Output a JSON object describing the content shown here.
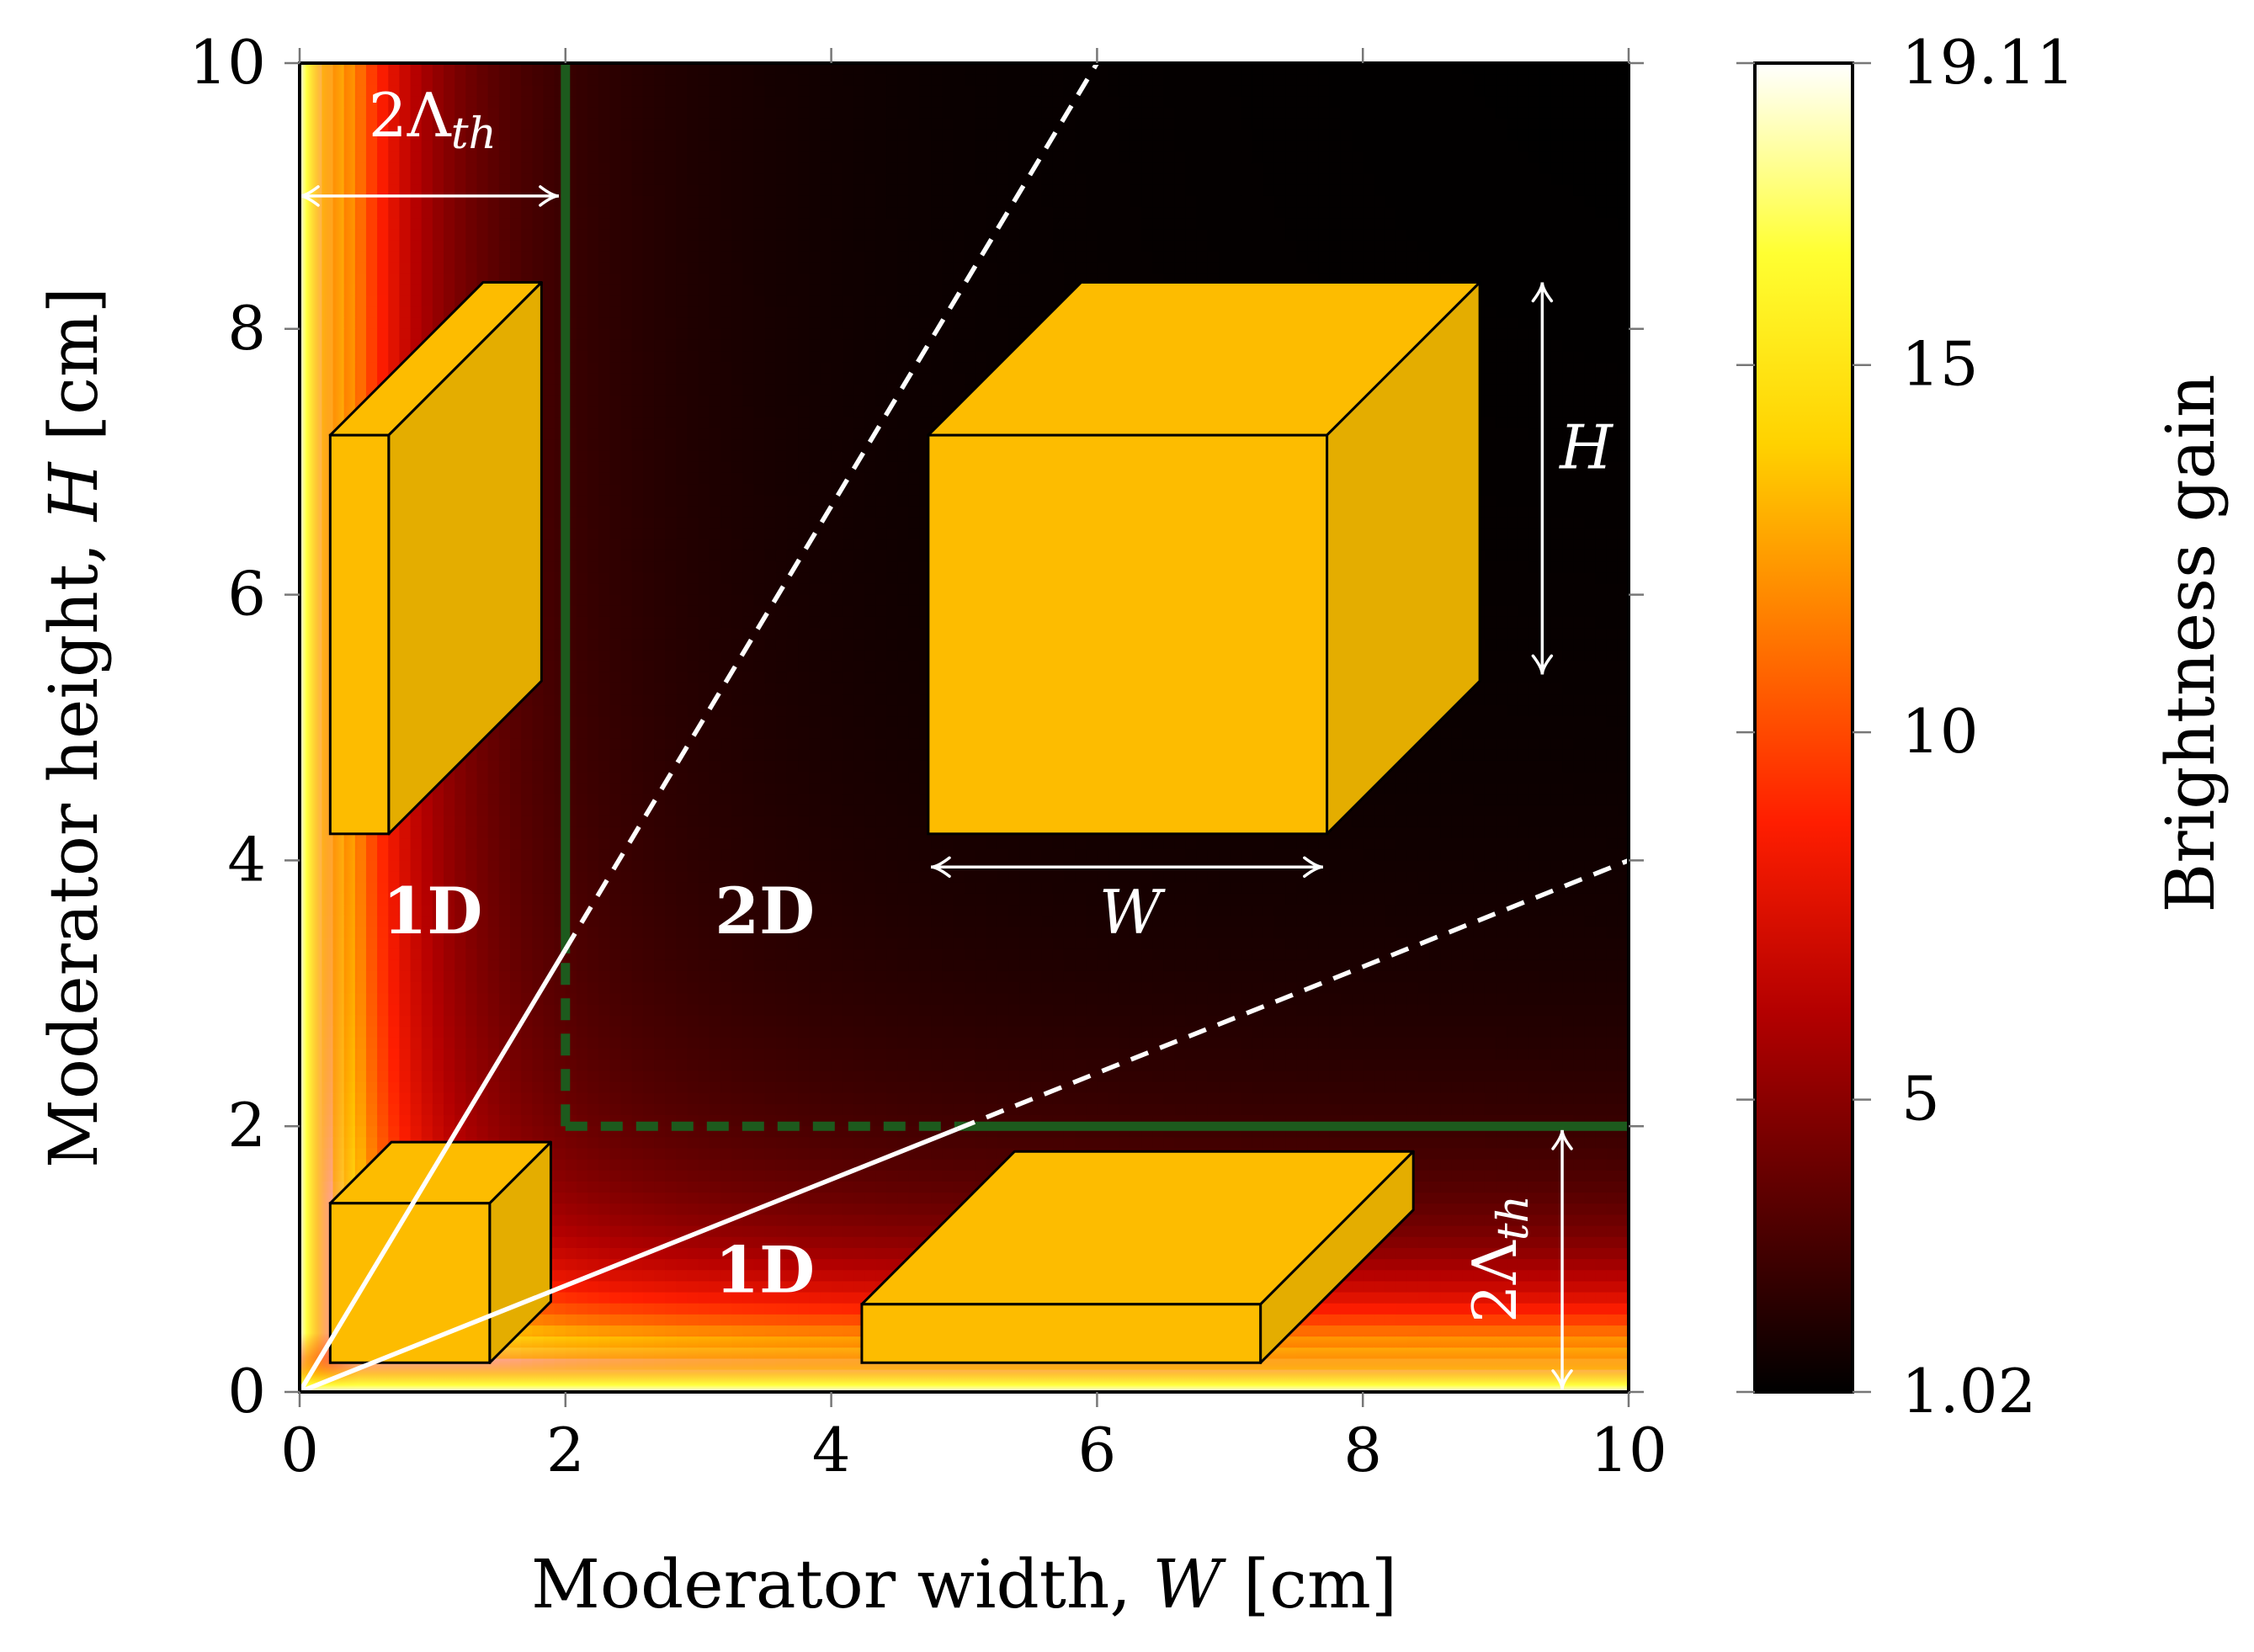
{
  "chart_data": {
    "type": "heatmap",
    "xlabel": "Moderator width, W [cm]",
    "xlabel_parts": {
      "prefix": "Moderator width, ",
      "symbol": "W",
      "suffix": " [cm]"
    },
    "ylabel": "Moderator height, H [cm]",
    "ylabel_parts": {
      "prefix": "Moderator height, ",
      "symbol": "H",
      "suffix": " [cm]"
    },
    "xlim": [
      0,
      10
    ],
    "ylim": [
      0,
      10
    ],
    "xticks": [
      0,
      2,
      4,
      6,
      8,
      10
    ],
    "yticks": [
      0,
      2,
      4,
      6,
      8,
      10
    ],
    "xtick_labels": [
      "0",
      "2",
      "4",
      "6",
      "8",
      "10"
    ],
    "ytick_labels": [
      "0",
      "2",
      "4",
      "6",
      "8",
      "10"
    ],
    "colorbar": {
      "label": "Brightness gain",
      "min": 1.02,
      "max": 19.11,
      "ticks": [
        1.02,
        5,
        10,
        15,
        19.11
      ],
      "tick_labels": [
        "1.02",
        "5",
        "10",
        "15",
        "19.11"
      ],
      "colormap": [
        "#000000",
        "#5a0000",
        "#b40000",
        "#ff1e00",
        "#ff7800",
        "#ffd200",
        "#ffff32",
        "#ffffff"
      ]
    },
    "lines": [
      {
        "name": "lambda-boundary-vertical-solid",
        "color": "#1d5a1d",
        "style": "solid",
        "points": [
          [
            2,
            3.3
          ],
          [
            2,
            10
          ]
        ]
      },
      {
        "name": "lambda-boundary-vertical-dashed",
        "color": "#1d5a1d",
        "style": "dashed",
        "points": [
          [
            2,
            2
          ],
          [
            2,
            3.3
          ]
        ]
      },
      {
        "name": "lambda-boundary-horizontal-dashed",
        "color": "#1d5a1d",
        "style": "dashed",
        "points": [
          [
            2,
            2
          ],
          [
            4.95,
            2
          ]
        ]
      },
      {
        "name": "lambda-boundary-horizontal-solid",
        "color": "#1d5a1d",
        "style": "solid",
        "points": [
          [
            4.95,
            2
          ],
          [
            10,
            2
          ]
        ]
      },
      {
        "name": "regime-boundary-upper-solid",
        "color": "#ffffff",
        "style": "solid",
        "points": [
          [
            0,
            0
          ],
          [
            2,
            3.33
          ]
        ]
      },
      {
        "name": "regime-boundary-upper-dashed",
        "color": "#ffffff",
        "style": "dashed",
        "points": [
          [
            2,
            3.33
          ],
          [
            6,
            10
          ]
        ]
      },
      {
        "name": "regime-boundary-lower-solid",
        "color": "#ffffff",
        "style": "solid",
        "points": [
          [
            0,
            0
          ],
          [
            4.95,
            1.98
          ]
        ]
      },
      {
        "name": "regime-boundary-lower-dashed",
        "color": "#ffffff",
        "style": "dashed",
        "points": [
          [
            4.95,
            1.98
          ],
          [
            10,
            4
          ]
        ]
      }
    ],
    "annotations": [
      {
        "name": "region-1d-left",
        "text": "1D",
        "x": 1.0,
        "y": 3.45
      },
      {
        "name": "region-2d",
        "text": "2D",
        "x": 3.5,
        "y": 3.45
      },
      {
        "name": "region-1d-bottom",
        "text": "1D",
        "x": 3.5,
        "y": 0.75
      },
      {
        "name": "lambda-label-top",
        "base": "2Λ",
        "sub": "th",
        "x": 1.0,
        "y": 9.45
      },
      {
        "name": "lambda-label-right",
        "base": "2Λ",
        "sub": "th",
        "x": 9.15,
        "y": 1.0,
        "rotated": true
      },
      {
        "name": "width-label",
        "text": "W",
        "x": 6.25,
        "y": 3.45
      },
      {
        "name": "height-label",
        "text": "H",
        "x": 9.68,
        "y": 6.95
      }
    ],
    "arrows": [
      {
        "name": "lambda-span-arrow-top",
        "from": [
          0,
          9.0
        ],
        "to": [
          1.95,
          9.0
        ]
      },
      {
        "name": "lambda-span-arrow-right",
        "from": [
          9.5,
          0.02
        ],
        "to": [
          9.5,
          1.97
        ]
      },
      {
        "name": "width-arrow",
        "from": [
          4.75,
          3.95
        ],
        "to": [
          7.7,
          3.95
        ]
      },
      {
        "name": "height-arrow",
        "from": [
          9.35,
          5.4
        ],
        "to": [
          9.35,
          8.35
        ]
      }
    ],
    "moderator_blocks": [
      {
        "name": "moderator-block-tall",
        "x0": 0.23,
        "y0": 4.2,
        "x1": 0.67,
        "y1": 7.2,
        "dx": 1.15,
        "dy": 1.15
      },
      {
        "name": "moderator-block-cube-large",
        "x0": 4.73,
        "y0": 4.2,
        "x1": 7.73,
        "y1": 7.2,
        "dx": 1.15,
        "dy": 1.15
      },
      {
        "name": "moderator-block-cube-small",
        "x0": 0.23,
        "y0": 0.22,
        "x1": 1.43,
        "y1": 1.42,
        "dx": 0.46,
        "dy": 0.46
      },
      {
        "name": "moderator-block-flat",
        "x0": 4.23,
        "y0": 0.22,
        "x1": 7.23,
        "y1": 0.66,
        "dx": 1.15,
        "dy": 1.15
      }
    ],
    "block_colors": {
      "front": "#fdbc00",
      "top": "#fdbc00",
      "side": "#e4ad00",
      "edge": "#000000"
    }
  }
}
